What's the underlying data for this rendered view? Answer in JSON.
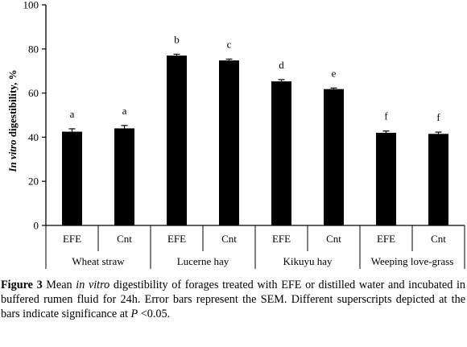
{
  "chart_data": {
    "type": "bar",
    "ylabel_italic": "In vitro",
    "ylabel_rest": " digestibility, %",
    "ylim": [
      0,
      100
    ],
    "yticks": [
      "0",
      "20",
      "40",
      "60",
      "80",
      "100"
    ],
    "categories": [
      "EFE",
      "Cnt",
      "EFE",
      "Cnt",
      "EFE",
      "Cnt",
      "EFE",
      "Cnt"
    ],
    "groups": [
      "Wheat straw",
      "Lucerne hay",
      "Kikuyu hay",
      "Weeping love-grass"
    ],
    "values": [
      42.5,
      44.0,
      77.0,
      74.8,
      65.3,
      61.8,
      42.0,
      41.5
    ],
    "errors": [
      1.3,
      1.3,
      0.6,
      0.6,
      0.8,
      0.5,
      0.8,
      0.8
    ],
    "superscripts": [
      "a",
      "a",
      "b",
      "c",
      "d",
      "e",
      "f",
      "f"
    ],
    "bar_color": "#000000"
  },
  "caption": {
    "figure_label": "Figure 3",
    "part1": " Mean ",
    "italic1": "in vitro",
    "part2": " digestibility of forages treated with EFE or distilled water and incubated in buffered rumen fluid for 24h.  Error bars represent the SEM.  Different superscripts depicted at the bars indicate significance at ",
    "italic2": "P",
    "part3": " <0.05."
  }
}
